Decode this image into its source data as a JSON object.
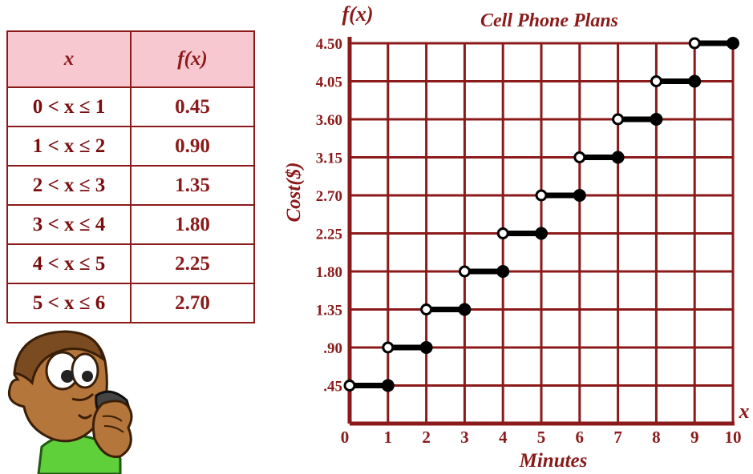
{
  "table": {
    "headers": [
      "x",
      "f(x)"
    ],
    "rows": [
      {
        "x": "0 < x ≤ 1",
        "fx": "0.45"
      },
      {
        "x": "1 < x ≤ 2",
        "fx": "0.90"
      },
      {
        "x": "2 < x ≤ 3",
        "fx": "1.35"
      },
      {
        "x": "3 < x ≤ 4",
        "fx": "1.80"
      },
      {
        "x": "4 < x ≤ 5",
        "fx": "2.25"
      },
      {
        "x": "5 < x ≤ 6",
        "fx": "2.70"
      }
    ]
  },
  "chart_data": {
    "type": "step",
    "title": "Cell Phone Plans",
    "xlabel": "Minutes",
    "ylabel": "Cost($)",
    "x_axis_var": "x",
    "y_axis_var": "f(x)",
    "xlim": [
      0,
      10
    ],
    "ylim": [
      0,
      4.5
    ],
    "x_ticks": [
      "0",
      "1",
      "2",
      "3",
      "4",
      "5",
      "6",
      "7",
      "8",
      "9",
      "10"
    ],
    "y_ticks": [
      ".45",
      ".90",
      "1.35",
      "1.80",
      "2.25",
      "2.70",
      "3.15",
      "3.60",
      "4.05",
      "4.50"
    ],
    "grid": true,
    "steps": [
      {
        "x_start": 0,
        "x_end": 1,
        "y": 0.45
      },
      {
        "x_start": 1,
        "x_end": 2,
        "y": 0.9
      },
      {
        "x_start": 2,
        "x_end": 3,
        "y": 1.35
      },
      {
        "x_start": 3,
        "x_end": 4,
        "y": 1.8
      },
      {
        "x_start": 4,
        "x_end": 5,
        "y": 2.25
      },
      {
        "x_start": 5,
        "x_end": 6,
        "y": 2.7
      },
      {
        "x_start": 6,
        "x_end": 7,
        "y": 3.15
      },
      {
        "x_start": 7,
        "x_end": 8,
        "y": 3.6
      },
      {
        "x_start": 8,
        "x_end": 9,
        "y": 4.05
      },
      {
        "x_start": 9,
        "x_end": 10,
        "y": 4.5
      }
    ],
    "colors": {
      "grid": "#8b1a1a",
      "text": "#8b1a1a",
      "step": "#000000",
      "open_fill": "#ffffff"
    }
  }
}
